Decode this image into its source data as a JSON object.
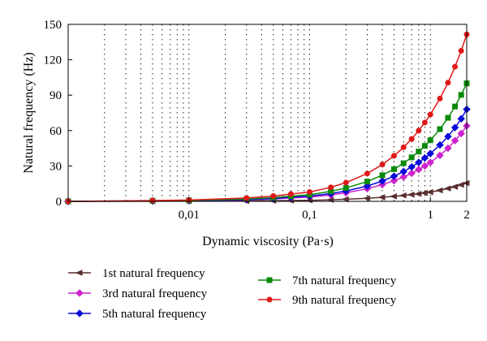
{
  "chart_data": {
    "type": "line",
    "title": "",
    "xlabel": "Dynamic viscosity (Pa·s)",
    "ylabel": "Natural frequency (Hz)",
    "x_scale": "log",
    "xlim": [
      0.001,
      2
    ],
    "ylim": [
      0,
      150
    ],
    "grid": "dotted vertical log grid",
    "legend_position": "bottom",
    "x_tick_labels": [
      {
        "value": 0.01,
        "label": "0,01"
      },
      {
        "value": 0.1,
        "label": "0,1"
      },
      {
        "value": 1,
        "label": "1"
      },
      {
        "value": 2,
        "label": "2"
      }
    ],
    "y_tick_labels": [
      {
        "value": 0,
        "label": "0"
      },
      {
        "value": 30,
        "label": "30"
      },
      {
        "value": 60,
        "label": "60"
      },
      {
        "value": 90,
        "label": "90"
      },
      {
        "value": 120,
        "label": "120"
      },
      {
        "value": 150,
        "label": "150"
      }
    ],
    "x": [
      0.001,
      0.005,
      0.01,
      0.03,
      0.05,
      0.07,
      0.1,
      0.15,
      0.2,
      0.3,
      0.4,
      0.5,
      0.6,
      0.7,
      0.8,
      0.9,
      1.0,
      1.2,
      1.4,
      1.6,
      1.8,
      2.0
    ],
    "series": [
      {
        "name": "1st natural frequency",
        "color": "#5a2e2e",
        "marker": "triangle-left",
        "values": [
          0,
          0.1,
          0.15,
          0.3,
          0.5,
          0.7,
          0.9,
          1.3,
          1.8,
          2.6,
          3.4,
          4.2,
          5.0,
          5.7,
          6.4,
          7.1,
          7.8,
          9.3,
          10.9,
          12.4,
          14.0,
          15.5
        ]
      },
      {
        "name": "3rd natural frequency",
        "color": "#cc22cc",
        "marker": "diamond",
        "values": [
          0,
          0.3,
          0.5,
          1.2,
          2.0,
          2.8,
          3.6,
          5.4,
          7.2,
          10.7,
          14.2,
          17.5,
          20.7,
          23.8,
          27.0,
          30.0,
          33.0,
          39.0,
          45.0,
          51.5,
          57.5,
          64.0
        ]
      },
      {
        "name": "5th natural frequency",
        "color": "#0a0ad8",
        "marker": "diamond",
        "values": [
          0,
          0.4,
          0.6,
          1.5,
          2.4,
          3.4,
          4.4,
          6.6,
          8.8,
          13.0,
          17.2,
          21.3,
          25.3,
          29.2,
          33.0,
          36.8,
          40.5,
          47.8,
          55.0,
          62.5,
          70.0,
          78.0
        ]
      },
      {
        "name": "7th natural frequency",
        "color": "#0a8a0a",
        "marker": "square",
        "values": [
          0,
          0.5,
          0.8,
          2.0,
          3.2,
          4.4,
          5.6,
          8.5,
          11.3,
          16.8,
          22.1,
          27.3,
          32.3,
          37.3,
          42.2,
          47.0,
          51.8,
          61.2,
          70.8,
          80.4,
          90.2,
          100.0
        ]
      },
      {
        "name": "9th natural frequency",
        "color": "#e01818",
        "marker": "circle",
        "values": [
          0,
          0.7,
          1.1,
          2.8,
          4.5,
          6.2,
          7.9,
          11.9,
          15.9,
          23.6,
          31.2,
          38.6,
          45.8,
          52.9,
          59.9,
          66.8,
          73.6,
          87.1,
          100.6,
          114.1,
          127.6,
          141.5
        ]
      }
    ]
  }
}
